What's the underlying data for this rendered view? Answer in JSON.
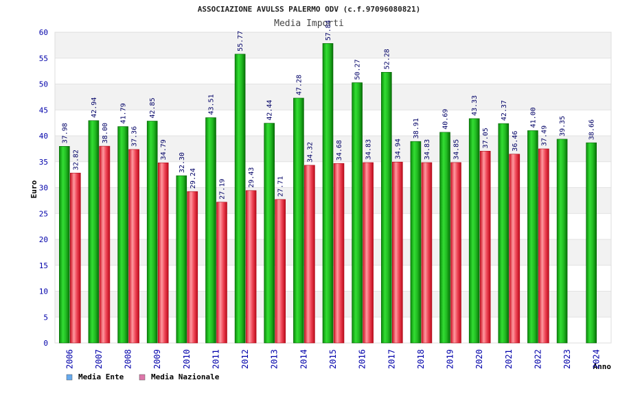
{
  "chart_data": {
    "type": "bar",
    "title": "ASSOCIAZIONE AVULSS PALERMO ODV (c.f.97096080821)",
    "subtitle": "Media Importi",
    "xlabel": "Anno",
    "ylabel": "Euro",
    "ylim": [
      0,
      60
    ],
    "yticks": [
      0,
      5,
      10,
      15,
      20,
      25,
      30,
      35,
      40,
      45,
      50,
      55,
      60
    ],
    "grid": true,
    "legend_position": "bottom-left",
    "categories": [
      "2006",
      "2007",
      "2008",
      "2009",
      "2010",
      "2011",
      "2012",
      "2013",
      "2014",
      "2015",
      "2016",
      "2017",
      "2018",
      "2019",
      "2020",
      "2021",
      "2022",
      "2023",
      "2024"
    ],
    "series": [
      {
        "name": "Media Ente",
        "color": "#22bb22",
        "legend_color": "#66aaee",
        "values": [
          37.98,
          42.94,
          41.79,
          42.85,
          32.3,
          43.51,
          55.77,
          42.44,
          47.28,
          57.84,
          50.27,
          52.28,
          38.91,
          40.69,
          43.33,
          42.37,
          41.0,
          39.35,
          38.66
        ],
        "labels": [
          "37.98",
          "42.94",
          "41.79",
          "42.85",
          "32.30",
          "43.51",
          "55.77",
          "42.44",
          "47.28",
          "57.84",
          "50.27",
          "52.28",
          "38.91",
          "40.69",
          "43.33",
          "42.37",
          "41.00",
          "39.35",
          "38.66"
        ]
      },
      {
        "name": "Media Nazionale",
        "color": "#ee3344",
        "legend_color": "#dd77aa",
        "values": [
          32.82,
          38.0,
          37.36,
          34.79,
          29.24,
          27.19,
          29.43,
          27.71,
          34.32,
          34.68,
          34.83,
          34.94,
          34.83,
          34.85,
          37.05,
          36.46,
          37.49,
          null,
          null
        ],
        "labels": [
          "32.82",
          "38.00",
          "37.36",
          "34.79",
          "29.24",
          "27.19",
          "29.43",
          "27.71",
          "34.32",
          "34.68",
          "34.83",
          "34.94",
          "34.83",
          "34.85",
          "37.05",
          "36.46",
          "37.49",
          "",
          ""
        ]
      }
    ]
  }
}
